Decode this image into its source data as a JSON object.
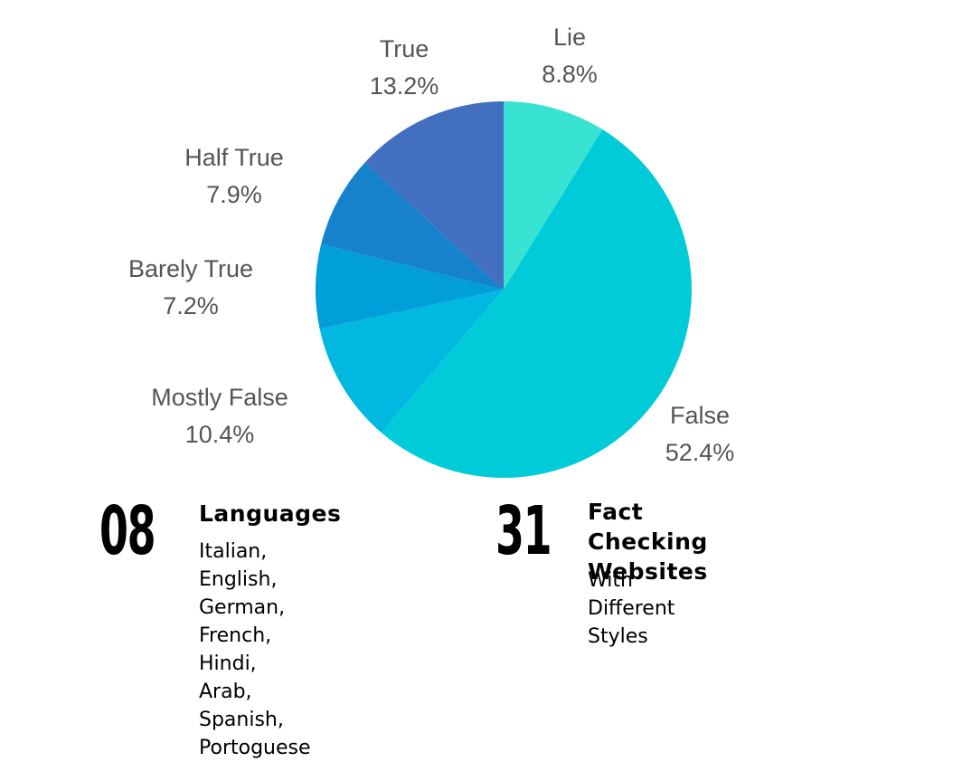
{
  "chart_data": {
    "type": "pie",
    "title": "",
    "slices": [
      {
        "label": "Lie",
        "value": 8.8,
        "value_label": "8.8%",
        "color": "#38e3d4"
      },
      {
        "label": "False",
        "value": 52.4,
        "value_label": "52.4%",
        "color": "#00ccd9"
      },
      {
        "label": "Mostly False",
        "value": 10.4,
        "value_label": "10.4%",
        "color": "#00b8e0"
      },
      {
        "label": "Barely True",
        "value": 7.2,
        "value_label": "7.2%",
        "color": "#009fda"
      },
      {
        "label": "Half True",
        "value": 7.9,
        "value_label": "7.9%",
        "color": "#1682cc"
      },
      {
        "label": "True",
        "value": 13.2,
        "value_label": "13.2%",
        "color": "#426fbf"
      }
    ],
    "start": "top, clockwise"
  },
  "stats": [
    {
      "number": "08",
      "title_lines": [
        "Languages"
      ],
      "desc_lines": [
        "Italian, English, German,",
        "French, Hindi, Arab,",
        "Spanish, Portoguese"
      ]
    },
    {
      "number": "31",
      "title_lines": [
        "Fact Checking",
        "Websites"
      ],
      "desc_lines": [
        "With Different",
        "Styles"
      ]
    }
  ],
  "colors": {
    "label_text": "#555555",
    "stat_text": "#000000",
    "background": "#ffffff"
  }
}
